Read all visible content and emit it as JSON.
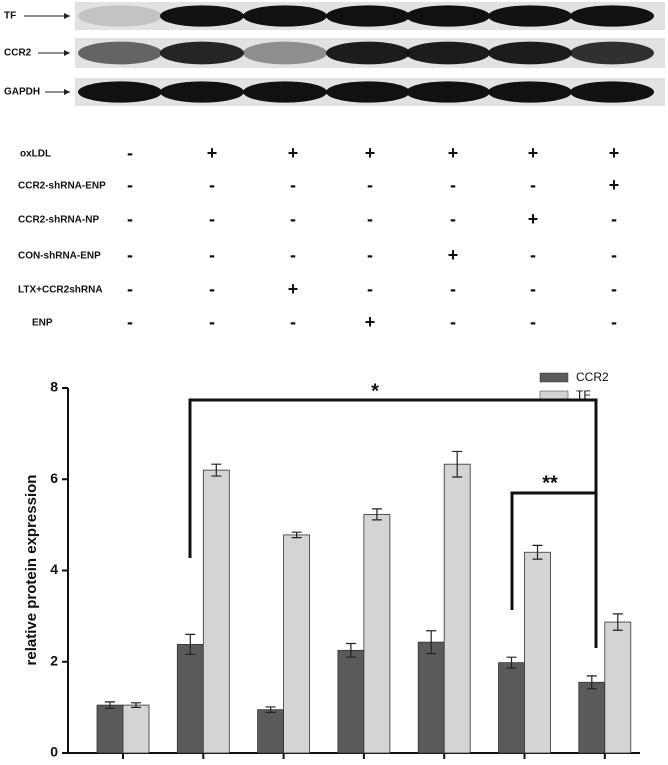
{
  "blot": {
    "labels": [
      "TF",
      "CCR2",
      "GAPDH"
    ]
  },
  "treatments": {
    "rows": [
      {
        "label": "oxLDL",
        "cells": [
          "-",
          "+",
          "+",
          "+",
          "+",
          "+",
          "+"
        ]
      },
      {
        "label": "CCR2-shRNA-ENP",
        "cells": [
          "-",
          "-",
          "-",
          "-",
          "-",
          "-",
          "+"
        ]
      },
      {
        "label": "CCR2-shRNA-NP",
        "cells": [
          "-",
          "-",
          "-",
          "-",
          "-",
          "+",
          "-"
        ]
      },
      {
        "label": "CON-shRNA-ENP",
        "cells": [
          "-",
          "-",
          "-",
          "-",
          "+",
          "-",
          "-"
        ]
      },
      {
        "label": "LTX+CCR2shRNA",
        "cells": [
          "-",
          "-",
          "+",
          "-",
          "-",
          "-",
          "-"
        ]
      },
      {
        "label": "ENP",
        "cells": [
          "-",
          "-",
          "-",
          "+",
          "-",
          "-",
          "-"
        ]
      }
    ]
  },
  "chart_data": {
    "type": "bar",
    "y_label": "relative protein expression",
    "categories": [
      null,
      null,
      null,
      null,
      null,
      null,
      null
    ],
    "series": [
      {
        "name": "CCR2",
        "color": "#5a5a5a",
        "values": [
          1.05,
          2.38,
          0.95,
          2.25,
          2.43,
          1.98,
          1.55
        ],
        "errors": [
          0.07,
          0.22,
          0.06,
          0.15,
          0.25,
          0.12,
          0.14
        ]
      },
      {
        "name": "TF",
        "color": "#d4d4d4",
        "values": [
          1.05,
          6.2,
          4.78,
          5.23,
          6.33,
          4.4,
          2.87
        ],
        "errors": [
          0.05,
          0.13,
          0.06,
          0.12,
          0.28,
          0.15,
          0.18
        ]
      }
    ],
    "ylim": [
      0,
      8
    ],
    "yticks": [
      0,
      2,
      4,
      6,
      8
    ],
    "annotations": [
      "*",
      "**"
    ]
  }
}
